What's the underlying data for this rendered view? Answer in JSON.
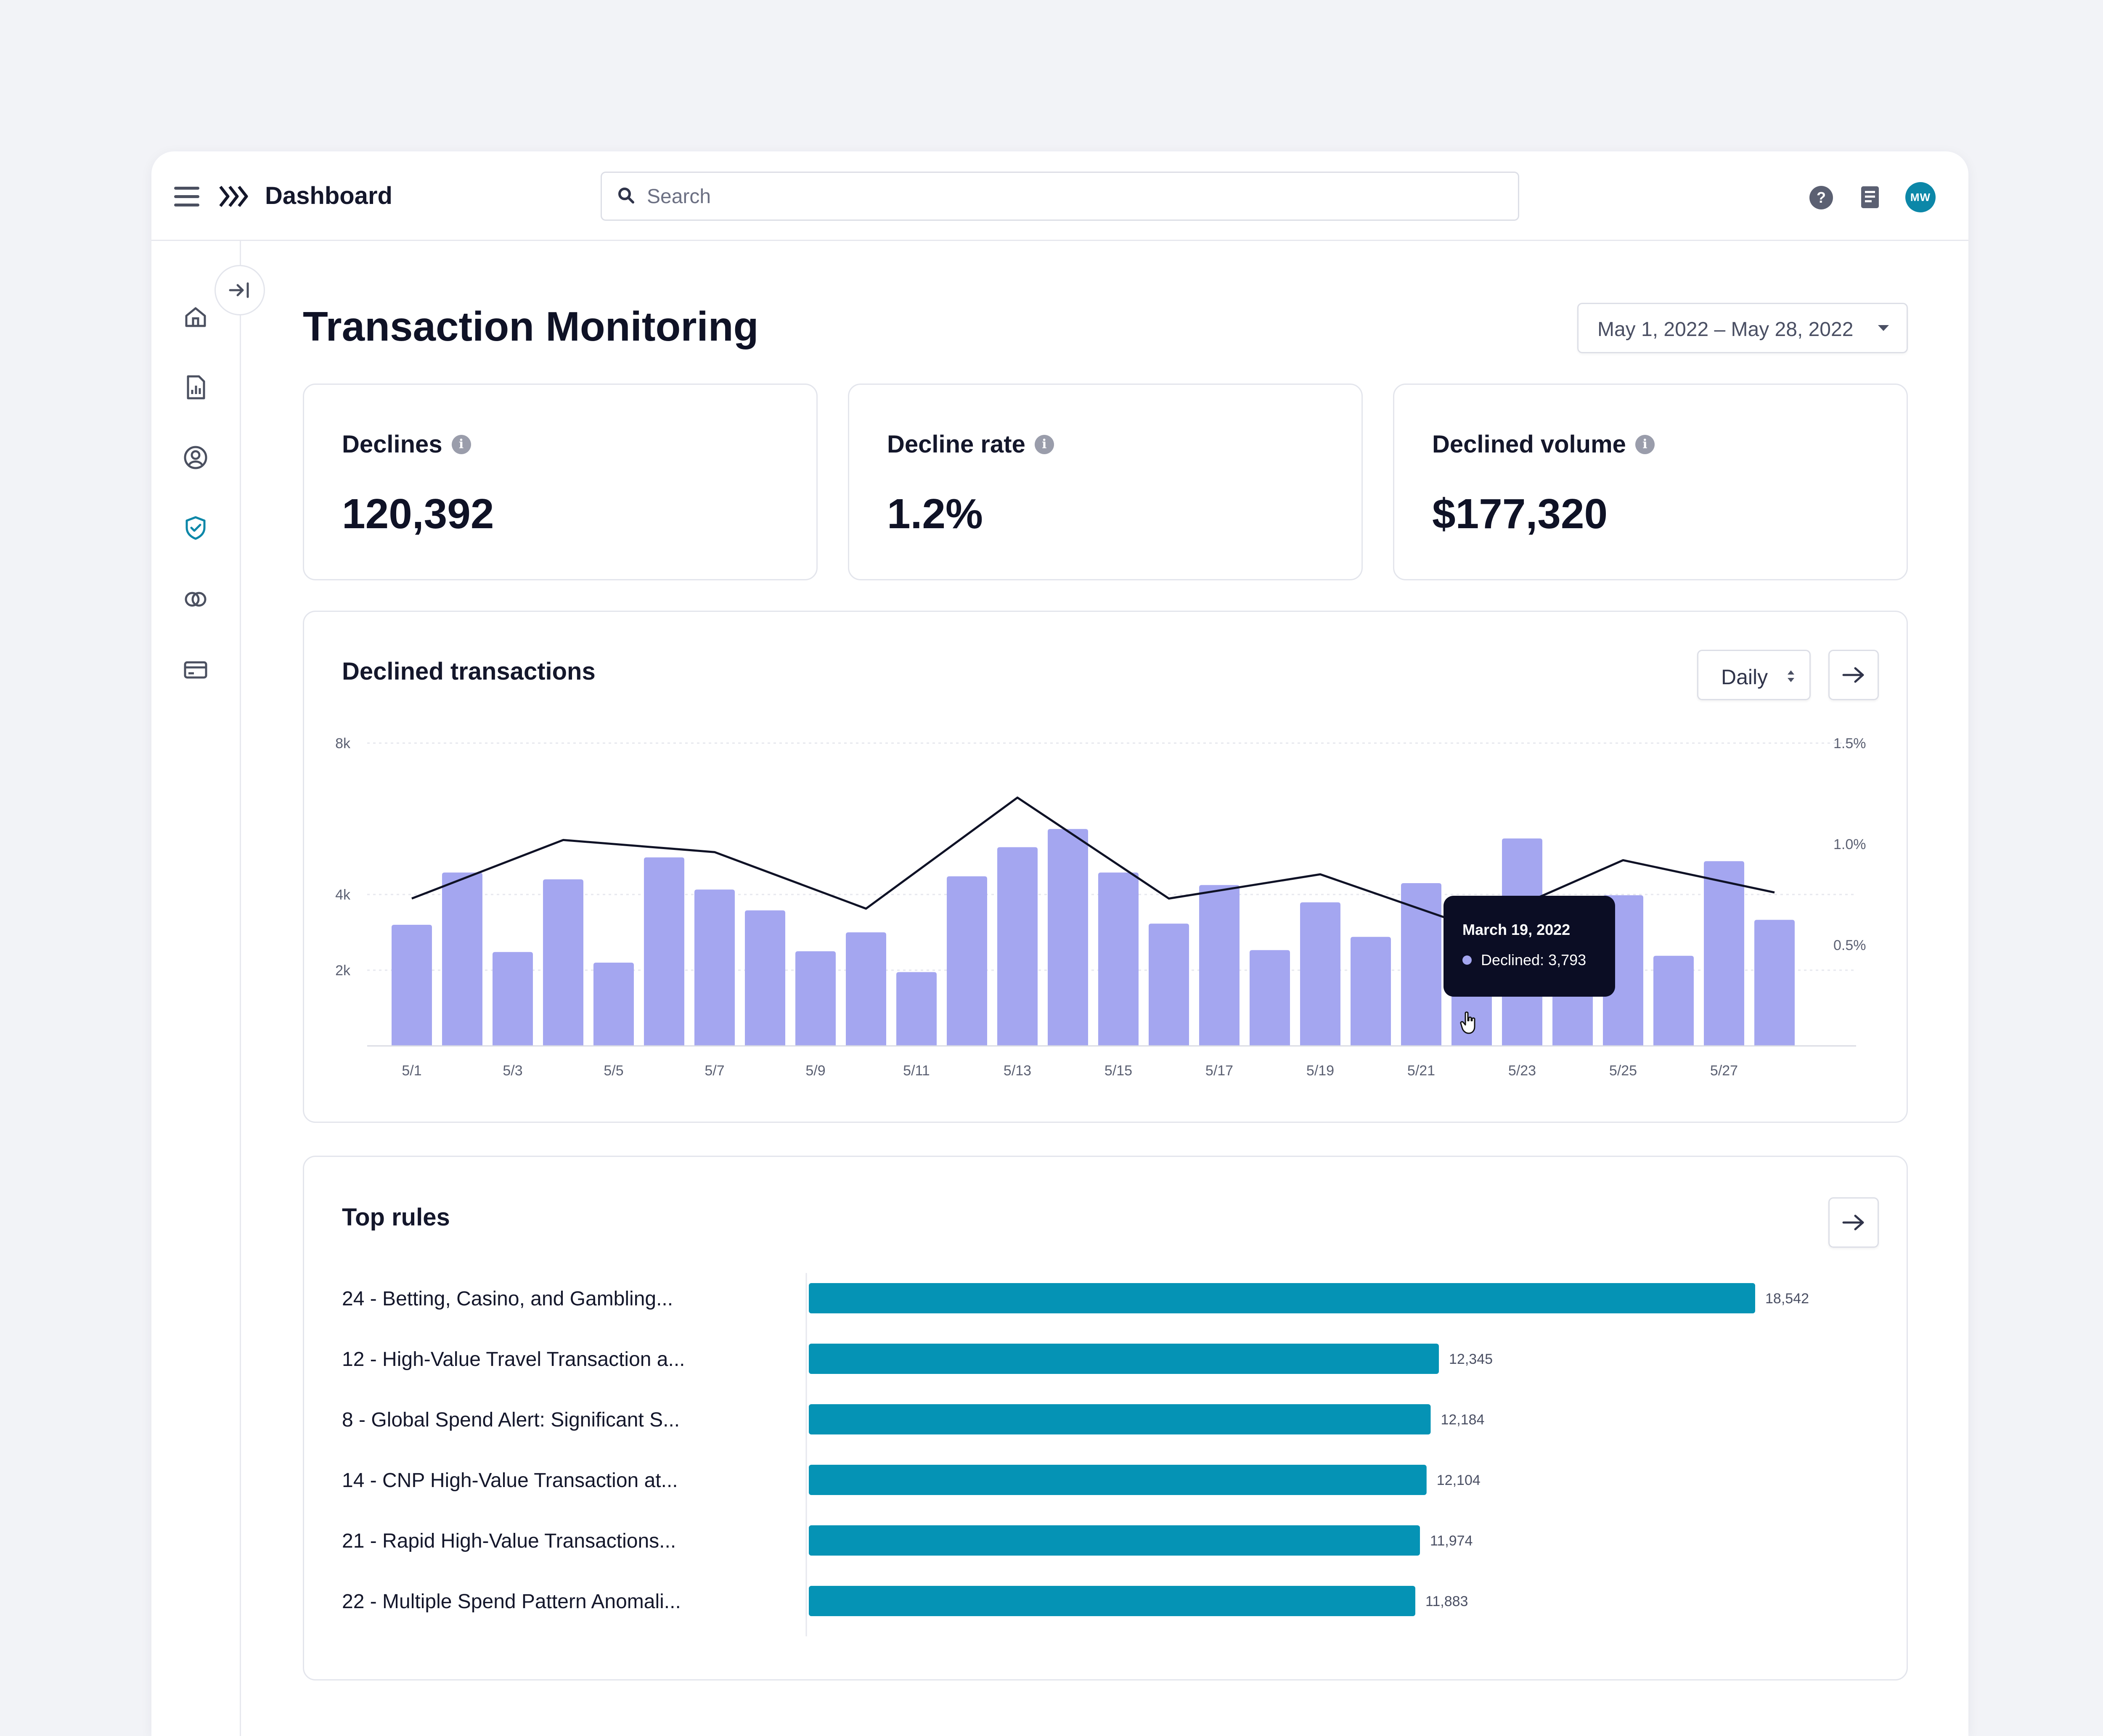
{
  "header": {
    "title": "Dashboard",
    "search_placeholder": "Search",
    "avatar_initials": "MW"
  },
  "page": {
    "title": "Transaction Monitoring",
    "date_range": "May 1, 2022 – May 28, 2022"
  },
  "kpis": [
    {
      "label": "Declines",
      "value": "120,392"
    },
    {
      "label": "Decline rate",
      "value": "1.2%"
    },
    {
      "label": "Declined volume",
      "value": "$177,320"
    }
  ],
  "declined_chart": {
    "title": "Declined transactions",
    "granularity": "Daily",
    "tooltip": {
      "date": "March 19, 2022",
      "text": "Declined: 3,793"
    },
    "bar_color": "#a4a6f0",
    "line_color": "#0f1226"
  },
  "rules": {
    "title": "Top rules",
    "bar_color": "#0593b5"
  },
  "chart_data": [
    {
      "type": "bar",
      "title": "Declined transactions",
      "x": [
        "5/1",
        "5/2",
        "5/3",
        "5/4",
        "5/5",
        "5/6",
        "5/7",
        "5/8",
        "5/9",
        "5/10",
        "5/11",
        "5/12",
        "5/13",
        "5/14",
        "5/15",
        "5/16",
        "5/17",
        "5/18",
        "5/19",
        "5/20",
        "5/21",
        "5/22",
        "5/23",
        "5/24",
        "5/25",
        "5/26",
        "5/27",
        "5/28"
      ],
      "x_tick_labels": [
        "5/1",
        "5/3",
        "5/5",
        "5/7",
        "5/9",
        "5/11",
        "5/13",
        "5/15",
        "5/17",
        "5/19",
        "5/21",
        "5/23",
        "5/25",
        "5/27"
      ],
      "series": [
        {
          "name": "Declined",
          "axis": "left",
          "kind": "bar",
          "values": [
            3200,
            4580,
            2480,
            4400,
            2200,
            4980,
            4130,
            3580,
            2500,
            3000,
            1950,
            4480,
            5250,
            5730,
            4580,
            3230,
            4250,
            2530,
            3793,
            2880,
            4300,
            2620,
            5480,
            2630,
            3980,
            2380,
            4880,
            3330
          ]
        },
        {
          "axis": "right",
          "kind": "line",
          "x": [
            "5/1",
            "5/4",
            "5/7",
            "5/10",
            "5/13",
            "5/16",
            "5/19",
            "5/22",
            "5/25",
            "5/28"
          ],
          "values": [
            0.73,
            1.02,
            0.96,
            0.68,
            1.23,
            0.73,
            0.85,
            0.59,
            0.92,
            0.76
          ]
        }
      ],
      "y_left": {
        "ticks": [
          "2k",
          "4k",
          "8k"
        ],
        "tick_values": [
          2000,
          4000,
          8000
        ],
        "range": [
          0,
          8000
        ]
      },
      "y_right": {
        "ticks": [
          "0.5%",
          "1.0%",
          "1.5%"
        ],
        "tick_values": [
          0.5,
          1.0,
          1.5
        ],
        "range": [
          0,
          1.5
        ]
      },
      "grid": true
    },
    {
      "type": "bar",
      "orientation": "horizontal",
      "title": "Top rules",
      "categories": [
        "24 - Betting, Casino, and Gambling...",
        "12 - High-Value Travel Transaction a...",
        "8 - Global Spend Alert: Significant S...",
        "14 - CNP High-Value Transaction at...",
        "21 - Rapid High-Value Transactions...",
        "22 - Multiple Spend Pattern Anomali..."
      ],
      "values": [
        18542,
        12345,
        12184,
        12104,
        11974,
        11883
      ],
      "value_labels": [
        "18,542",
        "12,345",
        "12,184",
        "12,104",
        "11,974",
        "11,883"
      ]
    }
  ]
}
